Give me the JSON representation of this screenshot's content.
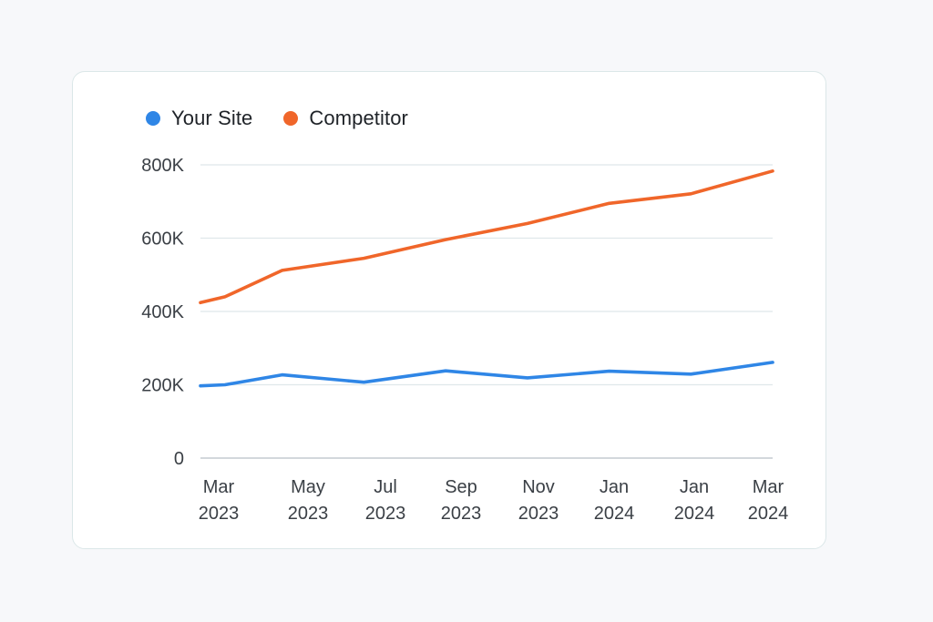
{
  "chart_data": {
    "type": "line",
    "categories": [
      [
        "Mar",
        "2023"
      ],
      [
        "May",
        "2023"
      ],
      [
        "Jul",
        "2023"
      ],
      [
        "Sep",
        "2023"
      ],
      [
        "Nov",
        "2023"
      ],
      [
        "Jan",
        "2024"
      ],
      [
        "Jan",
        "2024"
      ],
      [
        "Mar",
        "2024"
      ]
    ],
    "y_ticks": [
      "0",
      "200K",
      "400K",
      "600K",
      "800K"
    ],
    "ylim": [
      0,
      800000
    ],
    "grid": true,
    "legend_position": "top-left",
    "series": [
      {
        "name": "Your Site",
        "color": "#2f86e6",
        "points": [
          [
            0,
            197000
          ],
          [
            0.3,
            200000
          ],
          [
            1.0,
            227000
          ],
          [
            2.0,
            207000
          ],
          [
            3.0,
            238000
          ],
          [
            4.0,
            219000
          ],
          [
            5.0,
            237000
          ],
          [
            6.0,
            229000
          ],
          [
            7.0,
            261000
          ]
        ]
      },
      {
        "name": "Competitor",
        "color": "#f0662a",
        "points": [
          [
            0,
            424000
          ],
          [
            0.3,
            440000
          ],
          [
            1.0,
            512000
          ],
          [
            2.0,
            545000
          ],
          [
            3.0,
            596000
          ],
          [
            4.0,
            640000
          ],
          [
            5.0,
            695000
          ],
          [
            6.0,
            721000
          ],
          [
            7.0,
            783000
          ]
        ]
      }
    ],
    "colors": {
      "grid": "#dfe8ea",
      "axis": "#b9c0c6"
    }
  }
}
